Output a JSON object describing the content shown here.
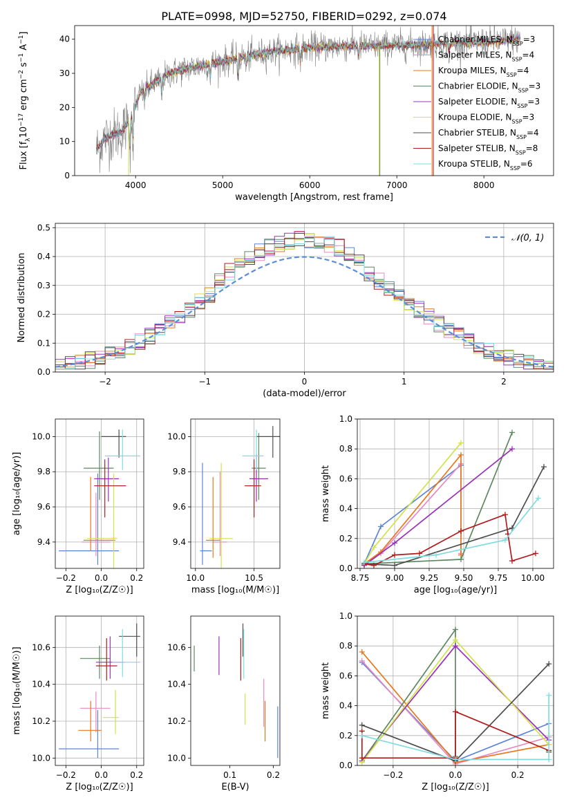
{
  "title": "PLATE=0998, MJD=52750, FIBERID=0292, z=0.074",
  "colors": {
    "data": "#808080",
    "gauss": "#5a8ed6",
    "grid": "#b0b0b0"
  },
  "models": [
    {
      "name": "Chabrier MILES, N$_{SSP}$=3",
      "label": "Chabrier MILES, N",
      "sub": "SSP",
      "n": "=3",
      "color": "#5b84d6",
      "mark": false
    },
    {
      "name": "Salpeter MILES, N$_{SSP}$=4",
      "label": "Salpeter MILES, N",
      "sub": "SSP",
      "n": "=4",
      "color": "#e78ac3",
      "mark": false
    },
    {
      "name": "Kroupa MILES, N$_{SSP}$=4",
      "label": "Kroupa MILES, N",
      "sub": "SSP",
      "n": "=4",
      "color": "#e8771d",
      "mark": false
    },
    {
      "name": "Chabrier ELODIE, N$_{SSP}$=3",
      "label": "Chabrier ELODIE, N",
      "sub": "SSP",
      "n": "=3",
      "color": "#5e8761",
      "mark": false
    },
    {
      "name": "Salpeter ELODIE, N$_{SSP}$=3",
      "label": "Salpeter ELODIE, N",
      "sub": "SSP",
      "n": "=3",
      "color": "#9b30b8",
      "mark": false
    },
    {
      "name": "Kroupa ELODIE, N$_{SSP}$=3",
      "label": "Kroupa ELODIE, N",
      "sub": "SSP",
      "n": "=3",
      "color": "#d2e24a",
      "mark": false
    },
    {
      "name": "Chabrier STELIB, N$_{SSP}$=4",
      "label": "Chabrier STELIB, N",
      "sub": "SSP",
      "n": "=4",
      "color": "#4d4d4d",
      "mark": false
    },
    {
      "name": "Salpeter STELIB, N$_{SSP}$=8",
      "label": "Salpeter STELIB, N",
      "sub": "SSP",
      "n": "=8",
      "color": "#b01c1c",
      "mark": false
    },
    {
      "name": "Kroupa STELIB, N$_{SSP}$=6",
      "label": "Kroupa STELIB, N",
      "sub": "SSP",
      "n": "=6",
      "color": "#7fdce0",
      "mark": false
    }
  ],
  "chart_data": [
    {
      "id": "spectrum",
      "type": "line",
      "xlabel": "wavelength [Angstrom, rest frame]",
      "ylabel_parts": [
        "Flux [f",
        "λ",
        "10",
        "−17",
        " erg cm",
        "−2",
        " s",
        "−1",
        " A",
        "−1",
        "]"
      ],
      "xlim": [
        3300,
        8800
      ],
      "ylim": [
        0,
        44
      ],
      "xticks": [
        4000,
        5000,
        6000,
        7000,
        8000
      ],
      "xtick_labels": [
        "4000",
        "5000",
        "6000",
        "7000",
        "8000"
      ],
      "yticks": [
        0,
        10,
        20,
        30,
        40
      ],
      "ytick_labels": [
        "0",
        "10",
        "20",
        "30",
        "40"
      ],
      "continuum": {
        "x": [
          3550,
          3650,
          3750,
          3850,
          3950,
          4050,
          4200,
          4400,
          4600,
          4800,
          5000,
          5200,
          5400,
          5600,
          5800,
          6000,
          6200,
          6400,
          6600,
          6800,
          7000,
          7200,
          7400,
          7600,
          7800,
          8000,
          8200,
          8400
        ],
        "y": [
          7.5,
          11,
          12,
          13,
          17,
          24,
          27,
          30,
          31.5,
          32.5,
          33.5,
          34.5,
          35.5,
          36.5,
          37,
          37.5,
          37.8,
          38,
          38,
          38,
          38.2,
          38.3,
          38.5,
          39,
          39,
          39.2,
          39.5,
          40
        ]
      },
      "legend_placement": "upper right"
    },
    {
      "id": "residual_hist",
      "type": "histogram",
      "xlabel": "(data-model)/error",
      "ylabel": "Normed distribution",
      "xlim": [
        -2.5,
        2.5
      ],
      "ylim": [
        0,
        0.515
      ],
      "xticks": [
        -2,
        -1,
        0,
        1,
        2
      ],
      "xtick_labels": [
        "−2",
        "−1",
        "0",
        "1",
        "2"
      ],
      "yticks": [
        0,
        0.1,
        0.2,
        0.3,
        0.4,
        0.5
      ],
      "ytick_labels": [
        "0.0",
        "0.1",
        "0.2",
        "0.3",
        "0.4",
        "0.5"
      ],
      "bin_width": 0.1,
      "gauss_label": "𝒩(0, 1)",
      "grid": true,
      "legend_placement": "upper right"
    },
    {
      "id": "age_vs_Z",
      "type": "errorbar",
      "xlabel": "Z [log₁₀(Z/Z☉)]",
      "ylabel": "age [log₁₀(age/yr)]",
      "xlim": [
        -0.26,
        0.24
      ],
      "ylim": [
        9.25,
        10.1
      ],
      "xticks": [
        -0.2,
        0.0,
        0.2
      ],
      "xtick_labels": [
        "−0.2",
        "0.0",
        "0.2"
      ],
      "yticks": [
        9.4,
        9.6,
        9.8,
        10.0
      ],
      "ytick_labels": [
        "9.4",
        "9.6",
        "9.8",
        "10.0"
      ],
      "grid": true,
      "points": [
        {
          "x": -0.02,
          "y": 9.35,
          "xerr": [
            0.22,
            0.12
          ],
          "yerr": [
            0.08,
            0.44
          ]
        },
        {
          "x": -0.03,
          "y": 9.4,
          "xerr": [
            0.08,
            0.08
          ],
          "yerr": [
            0.08,
            0.28
          ]
        },
        {
          "x": -0.06,
          "y": 9.41,
          "xerr": [
            0.04,
            0.14
          ],
          "yerr": [
            0.06,
            0.36
          ]
        },
        {
          "x": -0.01,
          "y": 9.82,
          "xerr": [
            0.09,
            0.08
          ],
          "yerr": [
            0.18,
            0.21
          ]
        },
        {
          "x": 0.04,
          "y": 9.76,
          "xerr": [
            0.08,
            0.06
          ],
          "yerr": [
            0.13,
            0.12
          ]
        },
        {
          "x": 0.07,
          "y": 9.42,
          "xerr": [
            0.15,
            0.02
          ],
          "yerr": [
            0.17,
            0.37
          ]
        },
        {
          "x": 0.1,
          "y": 10.0,
          "xerr": [
            0.1,
            0.04
          ],
          "yerr": [
            0.12,
            0.04
          ]
        },
        {
          "x": 0.02,
          "y": 9.72,
          "xerr": [
            0.06,
            0.12
          ],
          "yerr": [
            0.18,
            0.15
          ]
        },
        {
          "x": 0.12,
          "y": 9.89,
          "xerr": [
            0.1,
            0.1
          ],
          "yerr": [
            0.08,
            0.15
          ]
        }
      ]
    },
    {
      "id": "age_vs_mass",
      "type": "errorbar",
      "xlabel": "mass [log₁₀(M/M☉)]",
      "ylabel": "",
      "xlim": [
        9.96,
        10.72
      ],
      "ylim": [
        9.25,
        10.1
      ],
      "xticks": [
        10.0,
        10.5
      ],
      "xtick_labels": [
        "10.0",
        "10.5"
      ],
      "yticks": [
        9.4,
        9.6,
        9.8,
        10.0
      ],
      "ytick_labels": [
        "9.4",
        "9.6",
        "9.8",
        "10.0"
      ],
      "grid": true,
      "points": [
        {
          "x": 10.06,
          "y": 9.35,
          "xerr": [
            0.02,
            0.08
          ],
          "yerr": [
            0.08,
            0.5
          ]
        },
        {
          "x": 10.21,
          "y": 9.4,
          "xerr": [
            0.06,
            0.06
          ],
          "yerr": [
            0.08,
            0.4
          ]
        },
        {
          "x": 10.15,
          "y": 9.41,
          "xerr": [
            0.06,
            0.06
          ],
          "yerr": [
            0.1,
            0.36
          ]
        },
        {
          "x": 10.54,
          "y": 9.82,
          "xerr": [
            0.06,
            0.06
          ],
          "yerr": [
            0.18,
            0.2
          ]
        },
        {
          "x": 10.52,
          "y": 9.76,
          "xerr": [
            0.06,
            0.1
          ],
          "yerr": [
            0.13,
            0.14
          ]
        },
        {
          "x": 10.22,
          "y": 9.42,
          "xerr": [
            0.1,
            0.1
          ],
          "yerr": [
            0.17,
            0.43
          ]
        },
        {
          "x": 10.66,
          "y": 10.0,
          "xerr": [
            0.14,
            0.08
          ],
          "yerr": [
            0.12,
            0.06
          ]
        },
        {
          "x": 10.5,
          "y": 9.72,
          "xerr": [
            0.08,
            0.06
          ],
          "yerr": [
            0.18,
            0.15
          ]
        },
        {
          "x": 10.52,
          "y": 9.89,
          "xerr": [
            0.12,
            0.06
          ],
          "yerr": [
            0.08,
            0.15
          ]
        }
      ]
    },
    {
      "id": "weight_vs_age",
      "type": "line",
      "xlabel": "age [log₁₀(age/yr)]",
      "ylabel": "mass weight",
      "xlim": [
        8.73,
        10.15
      ],
      "ylim": [
        0,
        1
      ],
      "xticks": [
        8.75,
        9.0,
        9.25,
        9.5,
        9.75,
        10.0
      ],
      "xtick_labels": [
        "8.75",
        "9.00",
        "9.25",
        "9.50",
        "9.75",
        "10.00"
      ],
      "yticks": [
        0,
        0.2,
        0.4,
        0.6,
        0.8,
        1.0
      ],
      "ytick_labels": [
        "0.0",
        "0.2",
        "0.4",
        "0.6",
        "0.8",
        "1.0"
      ],
      "grid": true,
      "series": [
        {
          "x": [
            8.78,
            8.9,
            9.48
          ],
          "y": [
            0.03,
            0.28,
            0.69
          ]
        },
        {
          "x": [
            8.78,
            8.9,
            9.48,
            9.48
          ],
          "y": [
            0.02,
            0.1,
            0.7,
            0.1
          ]
        },
        {
          "x": [
            8.78,
            8.9,
            9.48,
            9.48
          ],
          "y": [
            0.03,
            0.11,
            0.76,
            0.09
          ]
        },
        {
          "x": [
            8.78,
            9.48,
            9.85
          ],
          "y": [
            0.03,
            0.06,
            0.91
          ]
        },
        {
          "x": [
            8.78,
            9.0,
            9.85
          ],
          "y": [
            0.02,
            0.17,
            0.8
          ]
        },
        {
          "x": [
            8.78,
            8.85,
            9.48
          ],
          "y": [
            0.03,
            0.14,
            0.84
          ]
        },
        {
          "x": [
            8.78,
            9.0,
            9.85,
            10.08
          ],
          "y": [
            0.03,
            0.02,
            0.27,
            0.68
          ]
        },
        {
          "x": [
            8.78,
            8.85,
            9.0,
            9.18,
            9.48,
            9.8,
            9.82,
            9.85,
            10.02
          ],
          "y": [
            0.03,
            0.02,
            0.09,
            0.1,
            0.25,
            0.36,
            0.23,
            0.05,
            0.1
          ]
        },
        {
          "x": [
            8.78,
            9.3,
            9.8,
            10.04
          ],
          "y": [
            0.04,
            0.09,
            0.19,
            0.47
          ]
        }
      ]
    },
    {
      "id": "mass_vs_Z",
      "type": "errorbar",
      "xlabel": "Z [log₁₀(Z/Z☉)]",
      "ylabel": "mass [log₁₀(M/M☉)]",
      "xlim": [
        -0.26,
        0.24
      ],
      "ylim": [
        9.96,
        10.77
      ],
      "xticks": [
        -0.2,
        0.0,
        0.2
      ],
      "xtick_labels": [
        "−0.2",
        "0.0",
        "0.2"
      ],
      "yticks": [
        10.0,
        10.2,
        10.4,
        10.6
      ],
      "ytick_labels": [
        "10.0",
        "10.2",
        "10.4",
        "10.6"
      ],
      "grid": true,
      "points": [
        {
          "x": -0.02,
          "y": 10.05,
          "xerr": [
            0.22,
            0.12
          ],
          "yerr": [
            0.05,
            0.21
          ]
        },
        {
          "x": -0.03,
          "y": 10.27,
          "xerr": [
            0.09,
            0.08
          ],
          "yerr": [
            0.13,
            0.09
          ]
        },
        {
          "x": -0.06,
          "y": 10.15,
          "xerr": [
            0.07,
            0.06
          ],
          "yerr": [
            0.06,
            0.16
          ]
        },
        {
          "x": -0.01,
          "y": 10.54,
          "xerr": [
            0.11,
            0.06
          ],
          "yerr": [
            0.11,
            0.07
          ]
        },
        {
          "x": 0.05,
          "y": 10.52,
          "xerr": [
            0.08,
            0.08
          ],
          "yerr": [
            0.09,
            0.14
          ]
        },
        {
          "x": 0.08,
          "y": 10.22,
          "xerr": [
            0.07,
            0.02
          ],
          "yerr": [
            0.09,
            0.15
          ]
        },
        {
          "x": 0.2,
          "y": 10.66,
          "xerr": [
            0.1,
            0.02
          ],
          "yerr": [
            0.11,
            0.07
          ]
        },
        {
          "x": 0.03,
          "y": 10.5,
          "xerr": [
            0.06,
            0.06
          ],
          "yerr": [
            0.08,
            0.15
          ]
        },
        {
          "x": 0.12,
          "y": 10.52,
          "xerr": [
            0.06,
            0.1
          ],
          "yerr": [
            0.08,
            0.18
          ]
        }
      ]
    },
    {
      "id": "mass_vs_ebv",
      "type": "errorbar",
      "xlabel": "E(B-V)",
      "ylabel": "",
      "xlim": [
        0.01,
        0.215
      ],
      "ylim": [
        9.96,
        10.77
      ],
      "xticks": [
        0.1,
        0.2
      ],
      "xtick_labels": [
        "0.1",
        "0.2"
      ],
      "yticks": [
        10.0,
        10.2,
        10.4,
        10.6
      ],
      "ytick_labels": [
        "10.0",
        "10.2",
        "10.4",
        "10.6"
      ],
      "grid": false,
      "points": [
        {
          "x": 0.21,
          "y": 10.05,
          "xerr": [
            0,
            0
          ],
          "yerr": [
            0.05,
            0.23
          ]
        },
        {
          "x": 0.178,
          "y": 10.3,
          "xerr": [
            0,
            0
          ],
          "yerr": [
            0.13,
            0.13
          ]
        },
        {
          "x": 0.181,
          "y": 10.15,
          "xerr": [
            0,
            0
          ],
          "yerr": [
            0.06,
            0.16
          ]
        },
        {
          "x": 0.018,
          "y": 10.54,
          "xerr": [
            0,
            0
          ],
          "yerr": [
            0.07,
            0.07
          ]
        },
        {
          "x": 0.075,
          "y": 10.52,
          "xerr": [
            0,
            0
          ],
          "yerr": [
            0.07,
            0.14
          ]
        },
        {
          "x": 0.135,
          "y": 10.22,
          "xerr": [
            0,
            0
          ],
          "yerr": [
            0.04,
            0.13
          ]
        },
        {
          "x": 0.13,
          "y": 10.66,
          "xerr": [
            0,
            0
          ],
          "yerr": [
            0.11,
            0.07
          ]
        },
        {
          "x": 0.125,
          "y": 10.5,
          "xerr": [
            0,
            0
          ],
          "yerr": [
            0.08,
            0.15
          ]
        },
        {
          "x": 0.132,
          "y": 10.52,
          "xerr": [
            0,
            0
          ],
          "yerr": [
            0.09,
            0.18
          ]
        }
      ]
    },
    {
      "id": "weight_vs_Z",
      "type": "line",
      "xlabel": "Z [log₁₀(Z/Z☉)]",
      "ylabel": "mass weight",
      "xlim": [
        -0.315,
        0.315
      ],
      "ylim": [
        0,
        1
      ],
      "xticks": [
        -0.2,
        0.0,
        0.2
      ],
      "xtick_labels": [
        "−0.2",
        "0.0",
        "0.2"
      ],
      "yticks": [
        0,
        0.2,
        0.4,
        0.6,
        0.8,
        1.0
      ],
      "ytick_labels": [
        "0.0",
        "0.2",
        "0.4",
        "0.6",
        "0.8",
        "1.0"
      ],
      "grid": true,
      "series": [
        {
          "x": [
            -0.3,
            0.0,
            0.3
          ],
          "y": [
            0.69,
            0.03,
            0.28
          ]
        },
        {
          "x": [
            -0.3,
            0.0,
            0.3
          ],
          "y": [
            0.7,
            0.01,
            0.19
          ]
        },
        {
          "x": [
            -0.3,
            0.0,
            0.3
          ],
          "y": [
            0.76,
            0.02,
            0.14
          ]
        },
        {
          "x": [
            -0.3,
            0.0,
            0.0
          ],
          "y": [
            0.03,
            0.91,
            0.06
          ]
        },
        {
          "x": [
            -0.3,
            0.0,
            0.3
          ],
          "y": [
            0.03,
            0.8,
            0.17
          ]
        },
        {
          "x": [
            -0.3,
            0.0,
            0.3
          ],
          "y": [
            0.02,
            0.84,
            0.14
          ]
        },
        {
          "x": [
            -0.3,
            0.0,
            0.3
          ],
          "y": [
            0.27,
            0.03,
            0.68
          ]
        },
        {
          "x": [
            -0.3,
            -0.3,
            0.0,
            0.0,
            0.3,
            0.3
          ],
          "y": [
            0.23,
            0.05,
            0.05,
            0.36,
            0.1,
            0.09
          ]
        },
        {
          "x": [
            -0.3,
            0.0,
            0.3,
            0.3
          ],
          "y": [
            0.2,
            0.04,
            0.04,
            0.47
          ]
        }
      ]
    }
  ]
}
